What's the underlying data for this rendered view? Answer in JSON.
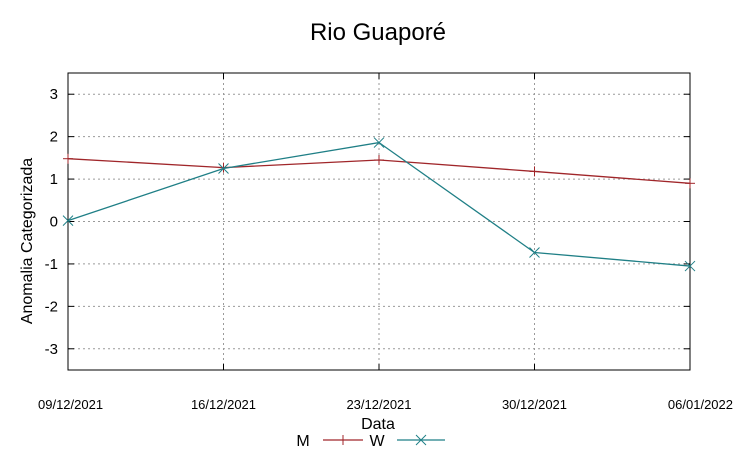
{
  "chart_data": {
    "type": "line",
    "title": "Rio Guaporé",
    "xlabel": "Data",
    "ylabel": "Anomalia Categorizada",
    "x": [
      "09/12/2021",
      "16/12/2021",
      "23/12/2021",
      "30/12/2021",
      "06/01/2022"
    ],
    "ylim": [
      -3.5,
      3.5
    ],
    "yticks": [
      3,
      2,
      1,
      0,
      -1,
      -2,
      -3
    ],
    "grid": true,
    "legend": "bottom",
    "series": [
      {
        "name": "M",
        "color": "#a0262a",
        "marker": "plus",
        "values": [
          1.48,
          1.27,
          1.45,
          1.18,
          0.9
        ]
      },
      {
        "name": "W",
        "color": "#1f7f86",
        "marker": "x",
        "values": [
          0.02,
          1.25,
          1.86,
          -0.73,
          -1.05
        ]
      }
    ]
  }
}
